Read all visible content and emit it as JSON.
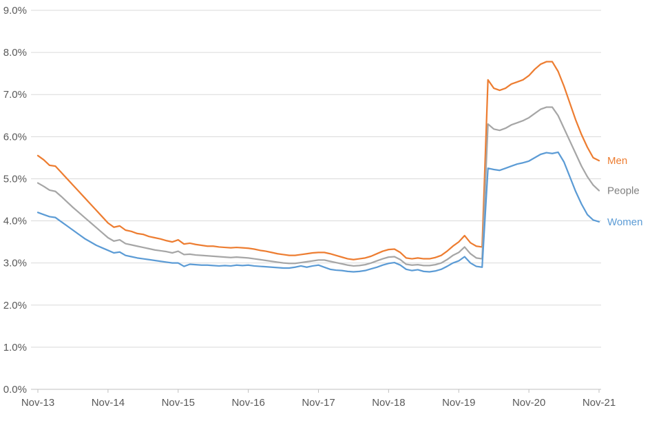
{
  "chart_data": {
    "type": "line",
    "title": "",
    "xlabel": "",
    "ylabel": "",
    "ylim": [
      0,
      9
    ],
    "y_unit": "%",
    "grid": true,
    "legend_position": "right-of-line-ends",
    "grid_color": "#D9D9D9",
    "axis_color": "#BFBFBF",
    "tick_label_color": "#595959",
    "x_tick_labels": [
      "Nov-13",
      "Nov-14",
      "Nov-15",
      "Nov-16",
      "Nov-17",
      "Nov-18",
      "Nov-19",
      "Nov-20",
      "Nov-21"
    ],
    "y_tick_labels": [
      "0.0%",
      "1.0%",
      "2.0%",
      "3.0%",
      "4.0%",
      "5.0%",
      "6.0%",
      "7.0%",
      "8.0%",
      "9.0%"
    ],
    "points_per_year": 12,
    "x_start_label": "Nov-13",
    "x_end_label": "Nov-21",
    "series": [
      {
        "name": "Men",
        "color": "#ED7D31",
        "label_color": "#ED7D31",
        "values": [
          5.55,
          5.45,
          5.32,
          5.3,
          5.15,
          5.0,
          4.85,
          4.7,
          4.55,
          4.4,
          4.25,
          4.1,
          3.95,
          3.85,
          3.88,
          3.78,
          3.75,
          3.7,
          3.68,
          3.63,
          3.6,
          3.57,
          3.53,
          3.5,
          3.55,
          3.45,
          3.47,
          3.44,
          3.42,
          3.4,
          3.4,
          3.38,
          3.37,
          3.36,
          3.37,
          3.36,
          3.35,
          3.33,
          3.3,
          3.28,
          3.25,
          3.22,
          3.2,
          3.18,
          3.18,
          3.2,
          3.22,
          3.24,
          3.25,
          3.25,
          3.22,
          3.18,
          3.14,
          3.1,
          3.08,
          3.1,
          3.12,
          3.16,
          3.22,
          3.28,
          3.32,
          3.33,
          3.25,
          3.12,
          3.1,
          3.12,
          3.1,
          3.1,
          3.13,
          3.18,
          3.28,
          3.4,
          3.5,
          3.65,
          3.48,
          3.4,
          3.38,
          7.35,
          7.15,
          7.1,
          7.15,
          7.25,
          7.3,
          7.35,
          7.45,
          7.6,
          7.72,
          7.78,
          7.78,
          7.55,
          7.2,
          6.8,
          6.4,
          6.05,
          5.75,
          5.5,
          5.43
        ]
      },
      {
        "name": "People",
        "color": "#A6A6A6",
        "label_color": "#808080",
        "values": [
          4.9,
          4.82,
          4.73,
          4.7,
          4.58,
          4.45,
          4.32,
          4.2,
          4.08,
          3.96,
          3.84,
          3.72,
          3.6,
          3.52,
          3.55,
          3.46,
          3.43,
          3.4,
          3.37,
          3.34,
          3.31,
          3.29,
          3.27,
          3.24,
          3.28,
          3.2,
          3.21,
          3.19,
          3.18,
          3.17,
          3.16,
          3.15,
          3.14,
          3.13,
          3.14,
          3.13,
          3.12,
          3.1,
          3.08,
          3.06,
          3.04,
          3.02,
          3.0,
          2.99,
          2.99,
          3.01,
          3.03,
          3.05,
          3.07,
          3.07,
          3.04,
          3.01,
          2.98,
          2.95,
          2.93,
          2.94,
          2.96,
          3.0,
          3.05,
          3.1,
          3.14,
          3.15,
          3.08,
          2.97,
          2.95,
          2.96,
          2.94,
          2.94,
          2.96,
          3.0,
          3.08,
          3.18,
          3.25,
          3.38,
          3.22,
          3.12,
          3.1,
          6.3,
          6.18,
          6.15,
          6.2,
          6.28,
          6.33,
          6.38,
          6.45,
          6.55,
          6.65,
          6.7,
          6.7,
          6.5,
          6.2,
          5.9,
          5.6,
          5.3,
          5.05,
          4.85,
          4.72
        ]
      },
      {
        "name": "Women",
        "color": "#5B9BD5",
        "label_color": "#5B9BD5",
        "values": [
          4.2,
          4.15,
          4.1,
          4.08,
          3.98,
          3.88,
          3.78,
          3.68,
          3.58,
          3.5,
          3.42,
          3.36,
          3.3,
          3.24,
          3.26,
          3.18,
          3.15,
          3.12,
          3.1,
          3.08,
          3.06,
          3.04,
          3.02,
          3.0,
          3.0,
          2.92,
          2.97,
          2.96,
          2.95,
          2.95,
          2.94,
          2.93,
          2.94,
          2.93,
          2.95,
          2.94,
          2.95,
          2.93,
          2.92,
          2.91,
          2.9,
          2.89,
          2.88,
          2.88,
          2.9,
          2.93,
          2.9,
          2.93,
          2.95,
          2.9,
          2.85,
          2.83,
          2.82,
          2.8,
          2.79,
          2.8,
          2.82,
          2.86,
          2.9,
          2.95,
          2.99,
          3.01,
          2.95,
          2.85,
          2.82,
          2.84,
          2.8,
          2.79,
          2.81,
          2.85,
          2.92,
          3.0,
          3.05,
          3.15,
          3.0,
          2.92,
          2.9,
          5.25,
          5.22,
          5.2,
          5.25,
          5.3,
          5.35,
          5.38,
          5.42,
          5.5,
          5.58,
          5.62,
          5.6,
          5.63,
          5.4,
          5.05,
          4.7,
          4.4,
          4.15,
          4.02,
          3.98
        ]
      }
    ]
  }
}
